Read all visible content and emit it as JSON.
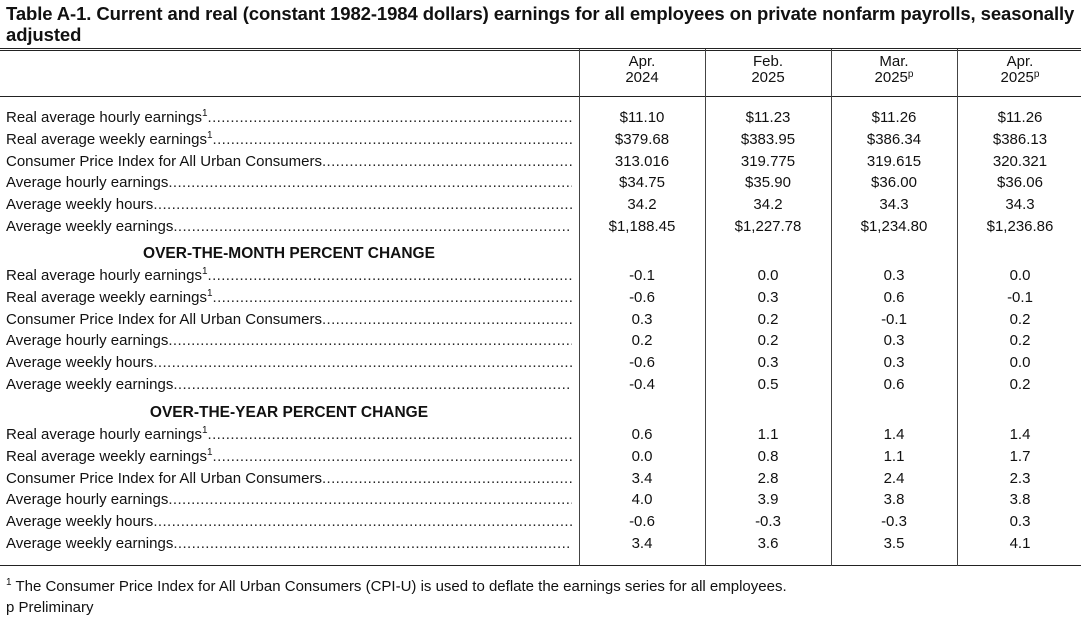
{
  "title": "Table A-1. Current and real (constant 1982-1984 dollars) earnings for all employees on private nonfarm payrolls, seasonally adjusted",
  "columns": [
    {
      "line1": "Apr.",
      "line2": "2024",
      "sup": ""
    },
    {
      "line1": "Feb.",
      "line2": "2025",
      "sup": ""
    },
    {
      "line1": "Mar.",
      "line2": "2025",
      "sup": "p"
    },
    {
      "line1": "Apr.",
      "line2": "2025",
      "sup": "p"
    }
  ],
  "sections": [
    {
      "heading": "",
      "rows": [
        {
          "label": "Real average hourly earnings",
          "note": "1",
          "values": [
            "$11.10",
            "$11.23",
            "$11.26",
            "$11.26"
          ]
        },
        {
          "label": "Real average weekly earnings",
          "note": "1",
          "values": [
            "$379.68",
            "$383.95",
            "$386.34",
            "$386.13"
          ]
        },
        {
          "label": "Consumer Price Index for All Urban Consumers",
          "note": "",
          "values": [
            "313.016",
            "319.775",
            "319.615",
            "320.321"
          ]
        },
        {
          "label": "Average hourly earnings",
          "note": "",
          "values": [
            "$34.75",
            "$35.90",
            "$36.00",
            "$36.06"
          ]
        },
        {
          "label": "Average weekly hours",
          "note": "",
          "values": [
            "34.2",
            "34.2",
            "34.3",
            "34.3"
          ]
        },
        {
          "label": "Average weekly earnings",
          "note": "",
          "values": [
            "$1,188.45",
            "$1,227.78",
            "$1,234.80",
            "$1,236.86"
          ]
        }
      ]
    },
    {
      "heading": "OVER-THE-MONTH PERCENT CHANGE",
      "rows": [
        {
          "label": "Real average hourly earnings",
          "note": "1",
          "values": [
            "-0.1",
            "0.0",
            "0.3",
            "0.0"
          ]
        },
        {
          "label": "Real average weekly earnings",
          "note": "1",
          "values": [
            "-0.6",
            "0.3",
            "0.6",
            "-0.1"
          ]
        },
        {
          "label": "Consumer Price Index for All Urban Consumers",
          "note": "",
          "values": [
            "0.3",
            "0.2",
            "-0.1",
            "0.2"
          ]
        },
        {
          "label": "Average hourly earnings",
          "note": "",
          "values": [
            "0.2",
            "0.2",
            "0.3",
            "0.2"
          ]
        },
        {
          "label": "Average weekly hours",
          "note": "",
          "values": [
            "-0.6",
            "0.3",
            "0.3",
            "0.0"
          ]
        },
        {
          "label": "Average weekly earnings",
          "note": "",
          "values": [
            "-0.4",
            "0.5",
            "0.6",
            "0.2"
          ]
        }
      ]
    },
    {
      "heading": "OVER-THE-YEAR PERCENT CHANGE",
      "rows": [
        {
          "label": "Real average hourly earnings",
          "note": "1",
          "values": [
            "0.6",
            "1.1",
            "1.4",
            "1.4"
          ]
        },
        {
          "label": "Real average weekly earnings",
          "note": "1",
          "values": [
            "0.0",
            "0.8",
            "1.1",
            "1.7"
          ]
        },
        {
          "label": "Consumer Price Index for All Urban Consumers",
          "note": "",
          "values": [
            "3.4",
            "2.8",
            "2.4",
            "2.3"
          ]
        },
        {
          "label": "Average hourly earnings",
          "note": "",
          "values": [
            "4.0",
            "3.9",
            "3.8",
            "3.8"
          ]
        },
        {
          "label": "Average weekly hours",
          "note": "",
          "values": [
            "-0.6",
            "-0.3",
            "-0.3",
            "0.3"
          ]
        },
        {
          "label": "Average weekly earnings",
          "note": "",
          "values": [
            "3.4",
            "3.6",
            "3.5",
            "4.1"
          ]
        }
      ]
    }
  ],
  "footnotes": [
    {
      "mark": "1",
      "text": " The Consumer Price Index for All Urban Consumers (CPI-U) is used to deflate the earnings series for all employees."
    },
    {
      "mark": "",
      "text": "p Preliminary"
    }
  ]
}
